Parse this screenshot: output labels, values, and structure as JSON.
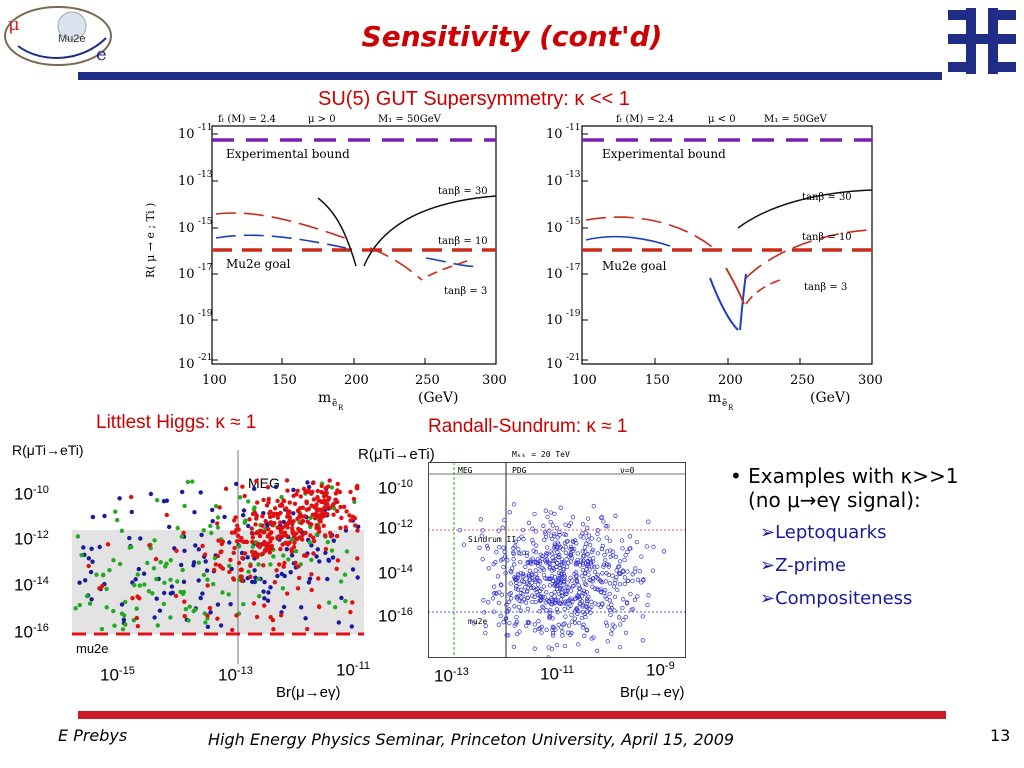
{
  "slide": {
    "title": "Sensitivity (cont'd)",
    "subtitle": "SU(5) GUT Supersymmetry: κ << 1",
    "page_number": "13",
    "footer_left": "E Prebys",
    "footer_center": "High Energy Physics Seminar, Princeton University, April 15, 2009",
    "logo_text": "Mu2e"
  },
  "colors": {
    "title": "#cc0000",
    "top_bar": "#1f2d86",
    "bottom_bar": "#cc1a2a",
    "bullet_sub": "#1a1aa0"
  },
  "su5_left": {
    "params": [
      "fₜ (M) = 2.4",
      "μ > 0",
      "M₁ = 50GeV"
    ],
    "y_ticks": [
      "10-11",
      "10-13",
      "10-15",
      "10-17",
      "10-19",
      "10-21"
    ],
    "x_ticks": [
      "100",
      "150",
      "200",
      "250",
      "300"
    ],
    "xlabel": "(GeV)",
    "ylabel": "R( μ → e ; Ti )",
    "exp_bound": "Experimental bound",
    "mu2e_goal": "Mu2e goal",
    "tan30": "tanβ = 30",
    "tan10": "tanβ = 10",
    "tan3": "tanβ = 3"
  },
  "su5_right": {
    "params": [
      "fₜ (M) = 2.4",
      "μ < 0",
      "M₁ = 50GeV"
    ],
    "y_ticks": [
      "10-11",
      "10-13",
      "10-15",
      "10-17",
      "10-19",
      "10-21"
    ],
    "x_ticks": [
      "100",
      "150",
      "200",
      "250",
      "300"
    ],
    "xlabel": "(GeV)",
    "exp_bound": "Experimental bound",
    "mu2e_goal": "Mu2e goal",
    "tan30": "tanβ = 30",
    "tan10": "tanβ = 10",
    "tan3": "tanβ = 3"
  },
  "littlest_higgs": {
    "title": "Littlest Higgs: κ ≈ 1",
    "ylabel": "R(μTi→eTi)",
    "xlabel": "Br(μ→eγ)",
    "meg": "MEG",
    "mu2e": "mu2e",
    "y_ticks": [
      {
        "b": "10",
        "e": "-10"
      },
      {
        "b": "10",
        "e": "-12"
      },
      {
        "b": "10",
        "e": "-14"
      },
      {
        "b": "10",
        "e": "-16"
      }
    ],
    "x_ticks": [
      {
        "b": "10",
        "e": "-15"
      },
      {
        "b": "10",
        "e": "-13"
      },
      {
        "b": "10",
        "e": "-11"
      }
    ]
  },
  "randall_sundrum": {
    "title": "Randall-Sundrum: κ ≈ 1",
    "ylabel": "R(μTi→eTi)",
    "xlabel": "Br(μ→eγ)",
    "header_mkk": "Mₖₖ = 20 TeV",
    "header_meg": "MEG",
    "header_pdg": "PDG",
    "header_nu": "ν=0",
    "sindrum": "Sindrum II",
    "mu2e": "mu2e",
    "y_ticks": [
      {
        "b": "10",
        "e": "-10"
      },
      {
        "b": "10",
        "e": "-12"
      },
      {
        "b": "10",
        "e": "-14"
      },
      {
        "b": "10",
        "e": "-16"
      }
    ],
    "x_ticks": [
      {
        "b": "10",
        "e": "-13"
      },
      {
        "b": "10",
        "e": "-11"
      },
      {
        "b": "10",
        "e": "-9"
      }
    ]
  },
  "bullets": {
    "main_pre": "Examples with ",
    "main_kappa": "κ>>1",
    "main_line2": "(no μ→eγ signal):",
    "items": [
      "Leptoquarks",
      "Z-prime",
      "Compositeness"
    ]
  }
}
